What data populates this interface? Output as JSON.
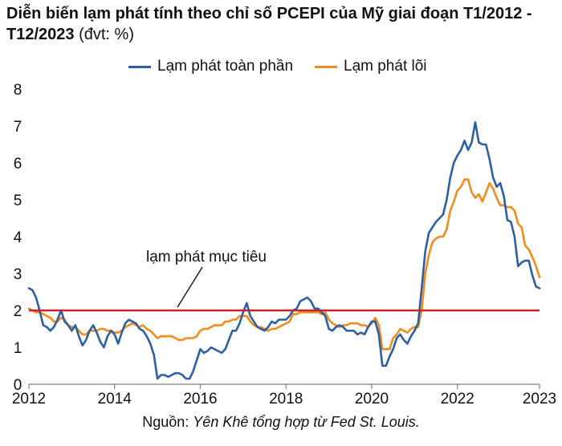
{
  "chart_data": {
    "type": "line",
    "title_bold": "Diễn biến lạm phát tính theo chỉ số PCEPI của Mỹ giai đoạn T1/2012 - T12/2023",
    "title_unit": "(đvt: %)",
    "source_prefix": "Nguồn:",
    "source_text": "Yên Khê tổng hợp từ Fed St. Louis.",
    "x_range": [
      "2012-01",
      "2023-12"
    ],
    "ylim": [
      0,
      8
    ],
    "yticks": [
      "0",
      "1",
      "2",
      "3",
      "4",
      "5",
      "6",
      "7",
      "8"
    ],
    "xticks": [
      "2012",
      "2014",
      "2016",
      "2018",
      "2020",
      "2022",
      "2023"
    ],
    "legend_position": "top-center",
    "grid": false,
    "target": {
      "label": "lạm phát mục tiêu",
      "value": 2,
      "color": "#c0272d"
    },
    "series": [
      {
        "name": "Lạm phát toàn phần",
        "color": "#2e5fa3",
        "points": [
          [
            "2012-01",
            2.6
          ],
          [
            "2012-02",
            2.55
          ],
          [
            "2012-03",
            2.35
          ],
          [
            "2012-04",
            2.0
          ],
          [
            "2012-05",
            1.6
          ],
          [
            "2012-06",
            1.55
          ],
          [
            "2012-07",
            1.45
          ],
          [
            "2012-08",
            1.55
          ],
          [
            "2012-09",
            1.75
          ],
          [
            "2012-10",
            2.0
          ],
          [
            "2012-11",
            1.7
          ],
          [
            "2012-12",
            1.6
          ],
          [
            "2013-01",
            1.45
          ],
          [
            "2013-02",
            1.6
          ],
          [
            "2013-03",
            1.3
          ],
          [
            "2013-04",
            1.05
          ],
          [
            "2013-05",
            1.2
          ],
          [
            "2013-06",
            1.45
          ],
          [
            "2013-07",
            1.6
          ],
          [
            "2013-08",
            1.4
          ],
          [
            "2013-09",
            1.15
          ],
          [
            "2013-10",
            1.0
          ],
          [
            "2013-11",
            1.3
          ],
          [
            "2013-12",
            1.45
          ],
          [
            "2014-01",
            1.35
          ],
          [
            "2014-02",
            1.1
          ],
          [
            "2014-03",
            1.4
          ],
          [
            "2014-04",
            1.65
          ],
          [
            "2014-05",
            1.75
          ],
          [
            "2014-06",
            1.7
          ],
          [
            "2014-07",
            1.65
          ],
          [
            "2014-08",
            1.5
          ],
          [
            "2014-09",
            1.45
          ],
          [
            "2014-10",
            1.3
          ],
          [
            "2014-11",
            1.1
          ],
          [
            "2014-12",
            0.8
          ],
          [
            "2015-01",
            0.15
          ],
          [
            "2015-02",
            0.25
          ],
          [
            "2015-03",
            0.25
          ],
          [
            "2015-04",
            0.2
          ],
          [
            "2015-05",
            0.25
          ],
          [
            "2015-06",
            0.3
          ],
          [
            "2015-07",
            0.3
          ],
          [
            "2015-08",
            0.25
          ],
          [
            "2015-09",
            0.15
          ],
          [
            "2015-10",
            0.15
          ],
          [
            "2015-11",
            0.35
          ],
          [
            "2015-12",
            0.65
          ],
          [
            "2016-01",
            0.95
          ],
          [
            "2016-02",
            0.85
          ],
          [
            "2016-03",
            0.9
          ],
          [
            "2016-04",
            1.0
          ],
          [
            "2016-05",
            0.95
          ],
          [
            "2016-06",
            0.9
          ],
          [
            "2016-07",
            0.85
          ],
          [
            "2016-08",
            0.95
          ],
          [
            "2016-09",
            1.2
          ],
          [
            "2016-10",
            1.45
          ],
          [
            "2016-11",
            1.45
          ],
          [
            "2016-12",
            1.65
          ],
          [
            "2017-01",
            1.95
          ],
          [
            "2017-02",
            2.2
          ],
          [
            "2017-03",
            1.85
          ],
          [
            "2017-04",
            1.7
          ],
          [
            "2017-05",
            1.55
          ],
          [
            "2017-06",
            1.5
          ],
          [
            "2017-07",
            1.45
          ],
          [
            "2017-08",
            1.55
          ],
          [
            "2017-09",
            1.7
          ],
          [
            "2017-10",
            1.65
          ],
          [
            "2017-11",
            1.75
          ],
          [
            "2017-12",
            1.75
          ],
          [
            "2018-01",
            1.75
          ],
          [
            "2018-02",
            1.85
          ],
          [
            "2018-03",
            2.0
          ],
          [
            "2018-04",
            2.05
          ],
          [
            "2018-05",
            2.25
          ],
          [
            "2018-06",
            2.3
          ],
          [
            "2018-07",
            2.35
          ],
          [
            "2018-08",
            2.25
          ],
          [
            "2018-09",
            2.05
          ],
          [
            "2018-10",
            2.05
          ],
          [
            "2018-11",
            1.95
          ],
          [
            "2018-12",
            1.85
          ],
          [
            "2019-01",
            1.5
          ],
          [
            "2019-02",
            1.45
          ],
          [
            "2019-03",
            1.55
          ],
          [
            "2019-04",
            1.6
          ],
          [
            "2019-05",
            1.55
          ],
          [
            "2019-06",
            1.45
          ],
          [
            "2019-07",
            1.45
          ],
          [
            "2019-08",
            1.45
          ],
          [
            "2019-09",
            1.35
          ],
          [
            "2019-10",
            1.4
          ],
          [
            "2019-11",
            1.35
          ],
          [
            "2019-12",
            1.55
          ],
          [
            "2020-01",
            1.7
          ],
          [
            "2020-02",
            1.7
          ],
          [
            "2020-03",
            1.35
          ],
          [
            "2020-04",
            0.5
          ],
          [
            "2020-05",
            0.5
          ],
          [
            "2020-06",
            0.75
          ],
          [
            "2020-07",
            0.95
          ],
          [
            "2020-08",
            1.25
          ],
          [
            "2020-09",
            1.35
          ],
          [
            "2020-10",
            1.2
          ],
          [
            "2020-11",
            1.1
          ],
          [
            "2020-12",
            1.3
          ],
          [
            "2021-01",
            1.45
          ],
          [
            "2021-02",
            1.65
          ],
          [
            "2021-03",
            2.6
          ],
          [
            "2021-04",
            3.6
          ],
          [
            "2021-05",
            4.1
          ],
          [
            "2021-06",
            4.25
          ],
          [
            "2021-07",
            4.4
          ],
          [
            "2021-08",
            4.5
          ],
          [
            "2021-09",
            4.6
          ],
          [
            "2021-10",
            5.0
          ],
          [
            "2021-11",
            5.6
          ],
          [
            "2021-12",
            6.0
          ],
          [
            "2022-01",
            6.2
          ],
          [
            "2022-02",
            6.35
          ],
          [
            "2022-03",
            6.6
          ],
          [
            "2022-04",
            6.35
          ],
          [
            "2022-05",
            6.55
          ],
          [
            "2022-06",
            7.1
          ],
          [
            "2022-07",
            6.55
          ],
          [
            "2022-08",
            6.5
          ],
          [
            "2022-09",
            6.5
          ],
          [
            "2022-10",
            6.1
          ],
          [
            "2022-11",
            5.6
          ],
          [
            "2022-12",
            5.35
          ],
          [
            "2023-01",
            5.45
          ],
          [
            "2023-02",
            5.1
          ],
          [
            "2023-03",
            4.45
          ],
          [
            "2023-04",
            4.4
          ],
          [
            "2023-05",
            4.0
          ],
          [
            "2023-06",
            3.2
          ],
          [
            "2023-07",
            3.3
          ],
          [
            "2023-08",
            3.35
          ],
          [
            "2023-09",
            3.35
          ],
          [
            "2023-10",
            2.95
          ],
          [
            "2023-11",
            2.65
          ],
          [
            "2023-12",
            2.6
          ]
        ]
      },
      {
        "name": "Lạm phát lõi",
        "color": "#f28c1c",
        "points": [
          [
            "2012-01",
            2.05
          ],
          [
            "2012-02",
            2.0
          ],
          [
            "2012-03",
            1.95
          ],
          [
            "2012-04",
            1.95
          ],
          [
            "2012-05",
            1.9
          ],
          [
            "2012-06",
            1.85
          ],
          [
            "2012-07",
            1.8
          ],
          [
            "2012-08",
            1.7
          ],
          [
            "2012-09",
            1.7
          ],
          [
            "2012-10",
            1.8
          ],
          [
            "2012-11",
            1.75
          ],
          [
            "2012-12",
            1.6
          ],
          [
            "2013-01",
            1.55
          ],
          [
            "2013-02",
            1.55
          ],
          [
            "2013-03",
            1.45
          ],
          [
            "2013-04",
            1.35
          ],
          [
            "2013-05",
            1.35
          ],
          [
            "2013-06",
            1.45
          ],
          [
            "2013-07",
            1.45
          ],
          [
            "2013-08",
            1.45
          ],
          [
            "2013-09",
            1.5
          ],
          [
            "2013-10",
            1.5
          ],
          [
            "2013-11",
            1.45
          ],
          [
            "2013-12",
            1.45
          ],
          [
            "2014-01",
            1.4
          ],
          [
            "2014-02",
            1.4
          ],
          [
            "2014-03",
            1.45
          ],
          [
            "2014-04",
            1.55
          ],
          [
            "2014-05",
            1.6
          ],
          [
            "2014-06",
            1.65
          ],
          [
            "2014-07",
            1.6
          ],
          [
            "2014-08",
            1.55
          ],
          [
            "2014-09",
            1.6
          ],
          [
            "2014-10",
            1.5
          ],
          [
            "2014-11",
            1.45
          ],
          [
            "2014-12",
            1.35
          ],
          [
            "2015-01",
            1.25
          ],
          [
            "2015-02",
            1.3
          ],
          [
            "2015-03",
            1.3
          ],
          [
            "2015-04",
            1.3
          ],
          [
            "2015-05",
            1.3
          ],
          [
            "2015-06",
            1.25
          ],
          [
            "2015-07",
            1.2
          ],
          [
            "2015-08",
            1.2
          ],
          [
            "2015-09",
            1.25
          ],
          [
            "2015-10",
            1.25
          ],
          [
            "2015-11",
            1.25
          ],
          [
            "2015-12",
            1.3
          ],
          [
            "2016-01",
            1.45
          ],
          [
            "2016-02",
            1.5
          ],
          [
            "2016-03",
            1.5
          ],
          [
            "2016-04",
            1.55
          ],
          [
            "2016-05",
            1.6
          ],
          [
            "2016-06",
            1.6
          ],
          [
            "2016-07",
            1.6
          ],
          [
            "2016-08",
            1.7
          ],
          [
            "2016-09",
            1.7
          ],
          [
            "2016-10",
            1.75
          ],
          [
            "2016-11",
            1.75
          ],
          [
            "2016-12",
            1.85
          ],
          [
            "2017-01",
            1.85
          ],
          [
            "2017-02",
            1.85
          ],
          [
            "2017-03",
            1.7
          ],
          [
            "2017-04",
            1.6
          ],
          [
            "2017-05",
            1.55
          ],
          [
            "2017-06",
            1.55
          ],
          [
            "2017-07",
            1.5
          ],
          [
            "2017-08",
            1.45
          ],
          [
            "2017-09",
            1.5
          ],
          [
            "2017-10",
            1.5
          ],
          [
            "2017-11",
            1.55
          ],
          [
            "2017-12",
            1.6
          ],
          [
            "2018-01",
            1.65
          ],
          [
            "2018-02",
            1.7
          ],
          [
            "2018-03",
            1.9
          ],
          [
            "2018-04",
            1.9
          ],
          [
            "2018-05",
            1.95
          ],
          [
            "2018-06",
            1.95
          ],
          [
            "2018-07",
            1.95
          ],
          [
            "2018-08",
            1.95
          ],
          [
            "2018-09",
            1.95
          ],
          [
            "2018-10",
            1.95
          ],
          [
            "2018-11",
            1.9
          ],
          [
            "2018-12",
            1.95
          ],
          [
            "2019-01",
            1.75
          ],
          [
            "2019-02",
            1.65
          ],
          [
            "2019-03",
            1.6
          ],
          [
            "2019-04",
            1.55
          ],
          [
            "2019-05",
            1.6
          ],
          [
            "2019-06",
            1.6
          ],
          [
            "2019-07",
            1.65
          ],
          [
            "2019-08",
            1.65
          ],
          [
            "2019-09",
            1.65
          ],
          [
            "2019-10",
            1.6
          ],
          [
            "2019-11",
            1.6
          ],
          [
            "2019-12",
            1.55
          ],
          [
            "2020-01",
            1.65
          ],
          [
            "2020-02",
            1.8
          ],
          [
            "2020-03",
            1.6
          ],
          [
            "2020-04",
            0.95
          ],
          [
            "2020-05",
            0.95
          ],
          [
            "2020-06",
            0.95
          ],
          [
            "2020-07",
            1.25
          ],
          [
            "2020-08",
            1.35
          ],
          [
            "2020-09",
            1.5
          ],
          [
            "2020-10",
            1.45
          ],
          [
            "2020-11",
            1.4
          ],
          [
            "2020-12",
            1.5
          ],
          [
            "2021-01",
            1.55
          ],
          [
            "2021-02",
            1.55
          ],
          [
            "2021-03",
            2.0
          ],
          [
            "2021-04",
            3.0
          ],
          [
            "2021-05",
            3.5
          ],
          [
            "2021-06",
            3.85
          ],
          [
            "2021-07",
            3.95
          ],
          [
            "2021-08",
            4.0
          ],
          [
            "2021-09",
            4.0
          ],
          [
            "2021-10",
            4.2
          ],
          [
            "2021-11",
            4.7
          ],
          [
            "2021-12",
            4.95
          ],
          [
            "2022-01",
            5.25
          ],
          [
            "2022-02",
            5.35
          ],
          [
            "2022-03",
            5.55
          ],
          [
            "2022-04",
            5.55
          ],
          [
            "2022-05",
            5.2
          ],
          [
            "2022-06",
            5.05
          ],
          [
            "2022-07",
            5.15
          ],
          [
            "2022-08",
            4.95
          ],
          [
            "2022-09",
            5.2
          ],
          [
            "2022-10",
            5.45
          ],
          [
            "2022-11",
            5.3
          ],
          [
            "2022-12",
            5.05
          ],
          [
            "2023-01",
            4.85
          ],
          [
            "2023-02",
            4.85
          ],
          [
            "2023-03",
            4.8
          ],
          [
            "2023-04",
            4.8
          ],
          [
            "2023-05",
            4.7
          ],
          [
            "2023-06",
            4.35
          ],
          [
            "2023-07",
            4.25
          ],
          [
            "2023-08",
            3.75
          ],
          [
            "2023-09",
            3.65
          ],
          [
            "2023-10",
            3.45
          ],
          [
            "2023-11",
            3.2
          ],
          [
            "2023-12",
            2.9
          ]
        ]
      }
    ]
  }
}
